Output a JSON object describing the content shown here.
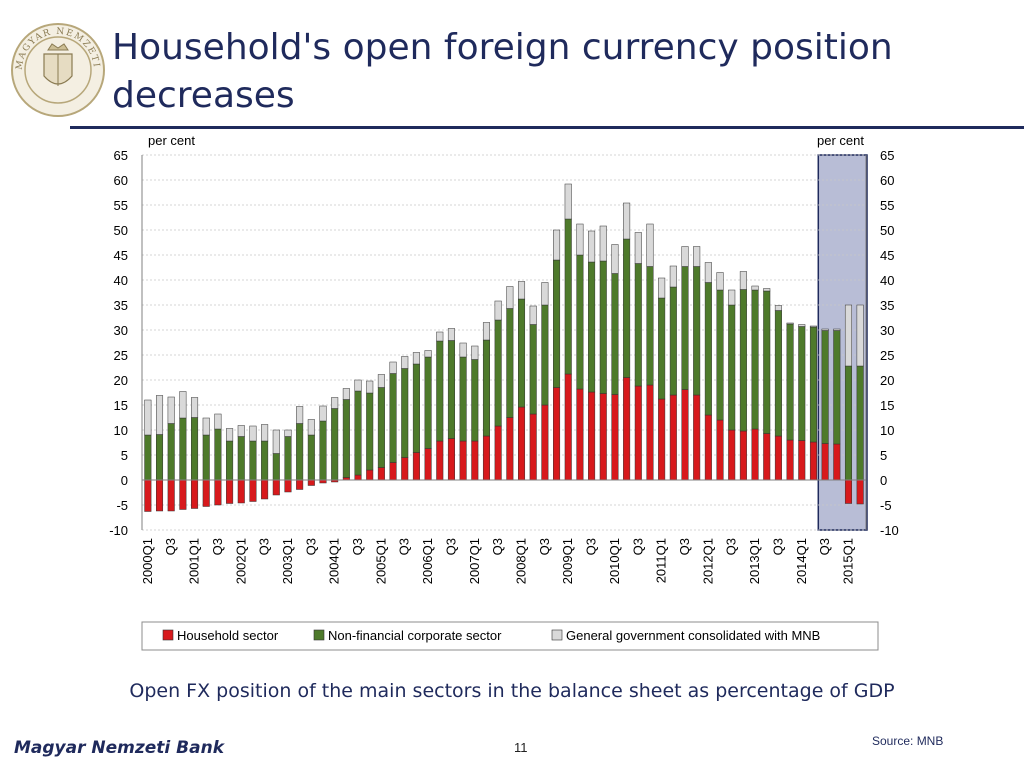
{
  "slide": {
    "title": "Household's open foreign currency position decreases",
    "subtitle": "Open FX position of the main sectors in the balance sheet as percentage of GDP",
    "footer_bank": "Magyar Nemzeti Bank",
    "page_number": "11",
    "source": "Source: MNB",
    "logo_text": "MAGYAR NEMZETI BANK"
  },
  "colors": {
    "household": "#d7191c",
    "corporate": "#4e7a2b",
    "government": "#d9d9d9",
    "highlight_box": "#b8bdd6",
    "highlight_border": "#1f2a5c"
  },
  "chart_data": {
    "type": "bar",
    "stacked": true,
    "left_unit": "per cent",
    "right_unit": "per cent",
    "ylim": [
      -10,
      65
    ],
    "yticks": [
      65,
      60,
      55,
      50,
      45,
      40,
      35,
      30,
      25,
      20,
      15,
      10,
      5,
      0,
      -5,
      -10
    ],
    "grid": true,
    "legend_position": "bottom",
    "highlight_range": [
      "2014Q3",
      "2015Q2"
    ],
    "categories": [
      "2000Q1",
      "Q2",
      "Q3",
      "Q4",
      "2001Q1",
      "Q2",
      "Q3",
      "Q4",
      "2002Q1",
      "Q2",
      "Q3",
      "Q4",
      "2003Q1",
      "Q2",
      "Q3",
      "Q4",
      "2004Q1",
      "Q2",
      "Q3",
      "Q4",
      "2005Q1",
      "Q2",
      "Q3",
      "Q4",
      "2006Q1",
      "Q2",
      "Q3",
      "Q4",
      "2007Q1",
      "Q2",
      "Q3",
      "Q4",
      "2008Q1",
      "Q2",
      "Q3",
      "Q4",
      "2009Q1",
      "Q2",
      "Q3",
      "Q4",
      "2010Q1",
      "Q2",
      "Q3",
      "Q4",
      "2011Q1",
      "Q2",
      "Q3",
      "Q4",
      "2012Q1",
      "Q2",
      "Q3",
      "Q4",
      "2013Q1",
      "Q2",
      "Q3",
      "Q4",
      "2014Q1",
      "Q2",
      "Q3",
      "Q4",
      "2015Q1",
      "Q2"
    ],
    "tick_labels": [
      "2000Q1",
      "",
      "Q3",
      "",
      "2001Q1",
      "",
      "Q3",
      "",
      "2002Q1",
      "",
      "Q3",
      "",
      "2003Q1",
      "",
      "Q3",
      "",
      "2004Q1",
      "",
      "Q3",
      "",
      "2005Q1",
      "",
      "Q3",
      "",
      "2006Q1",
      "",
      "Q3",
      "",
      "2007Q1",
      "",
      "Q3",
      "",
      "2008Q1",
      "",
      "Q3",
      "",
      "2009Q1",
      "",
      "Q3",
      "",
      "2010Q1",
      "",
      "Q3",
      "",
      "2011Q1",
      "",
      "Q3",
      "",
      "2012Q1",
      "",
      "Q3",
      "",
      "2013Q1",
      "",
      "Q3",
      "",
      "2014Q1",
      "",
      "Q3",
      "",
      "2015Q1",
      ""
    ],
    "series": [
      {
        "name": "Household sector",
        "values": [
          -6.3,
          -6.2,
          -6.2,
          -5.9,
          -5.7,
          -5.3,
          -5.0,
          -4.7,
          -4.6,
          -4.3,
          -3.8,
          -3.0,
          -2.4,
          -1.9,
          -1.1,
          -0.6,
          -0.4,
          0.5,
          1.0,
          2.0,
          2.5,
          3.5,
          4.5,
          5.5,
          6.3,
          7.8,
          8.3,
          7.8,
          7.8,
          8.8,
          10.8,
          12.5,
          14.6,
          13.2,
          15.0,
          18.5,
          21.2,
          18.2,
          17.6,
          17.3,
          17.1,
          20.5,
          18.8,
          19.0,
          16.2,
          17.0,
          18.1,
          17.0,
          13.0,
          12.0,
          10.0,
          9.8,
          10.2,
          9.3,
          8.8,
          8.0,
          7.9,
          7.6,
          7.3,
          7.2,
          -4.7,
          -4.8
        ]
      },
      {
        "name": "Non-financial corporate sector",
        "values": [
          9.0,
          9.1,
          11.3,
          12.4,
          12.5,
          9.0,
          10.2,
          7.8,
          8.7,
          7.8,
          7.8,
          5.3,
          8.7,
          11.3,
          9.0,
          11.8,
          14.3,
          15.6,
          16.8,
          15.4,
          16.0,
          17.8,
          17.8,
          17.7,
          18.3,
          20.0,
          19.6,
          16.8,
          16.3,
          19.2,
          21.2,
          21.8,
          21.6,
          17.9,
          20.0,
          25.5,
          31.0,
          26.8,
          26.0,
          26.5,
          24.2,
          27.7,
          24.5,
          23.7,
          20.2,
          21.6,
          24.6,
          25.7,
          26.5,
          26.0,
          25.0,
          28.3,
          27.8,
          28.5,
          25.1,
          23.2,
          22.8,
          23.0,
          22.6,
          22.7,
          22.8,
          22.8
        ]
      },
      {
        "name": "General government consolidated with MNB",
        "values": [
          7.0,
          7.8,
          5.3,
          5.3,
          4.0,
          3.4,
          3.0,
          2.5,
          2.2,
          3.0,
          3.3,
          4.7,
          1.3,
          3.4,
          3.1,
          3.0,
          2.2,
          2.2,
          2.2,
          2.4,
          2.6,
          2.3,
          2.4,
          2.3,
          1.3,
          1.8,
          2.4,
          2.8,
          2.7,
          3.5,
          3.8,
          4.4,
          3.5,
          3.7,
          4.5,
          6.0,
          7.0,
          6.2,
          6.2,
          7.0,
          5.8,
          7.2,
          6.2,
          8.5,
          4.0,
          4.2,
          4.0,
          4.0,
          4.0,
          3.5,
          3.0,
          3.6,
          0.8,
          0.5,
          1.0,
          0.2,
          0.4,
          0.2,
          0.3,
          0.3,
          12.2,
          12.2
        ]
      }
    ]
  }
}
